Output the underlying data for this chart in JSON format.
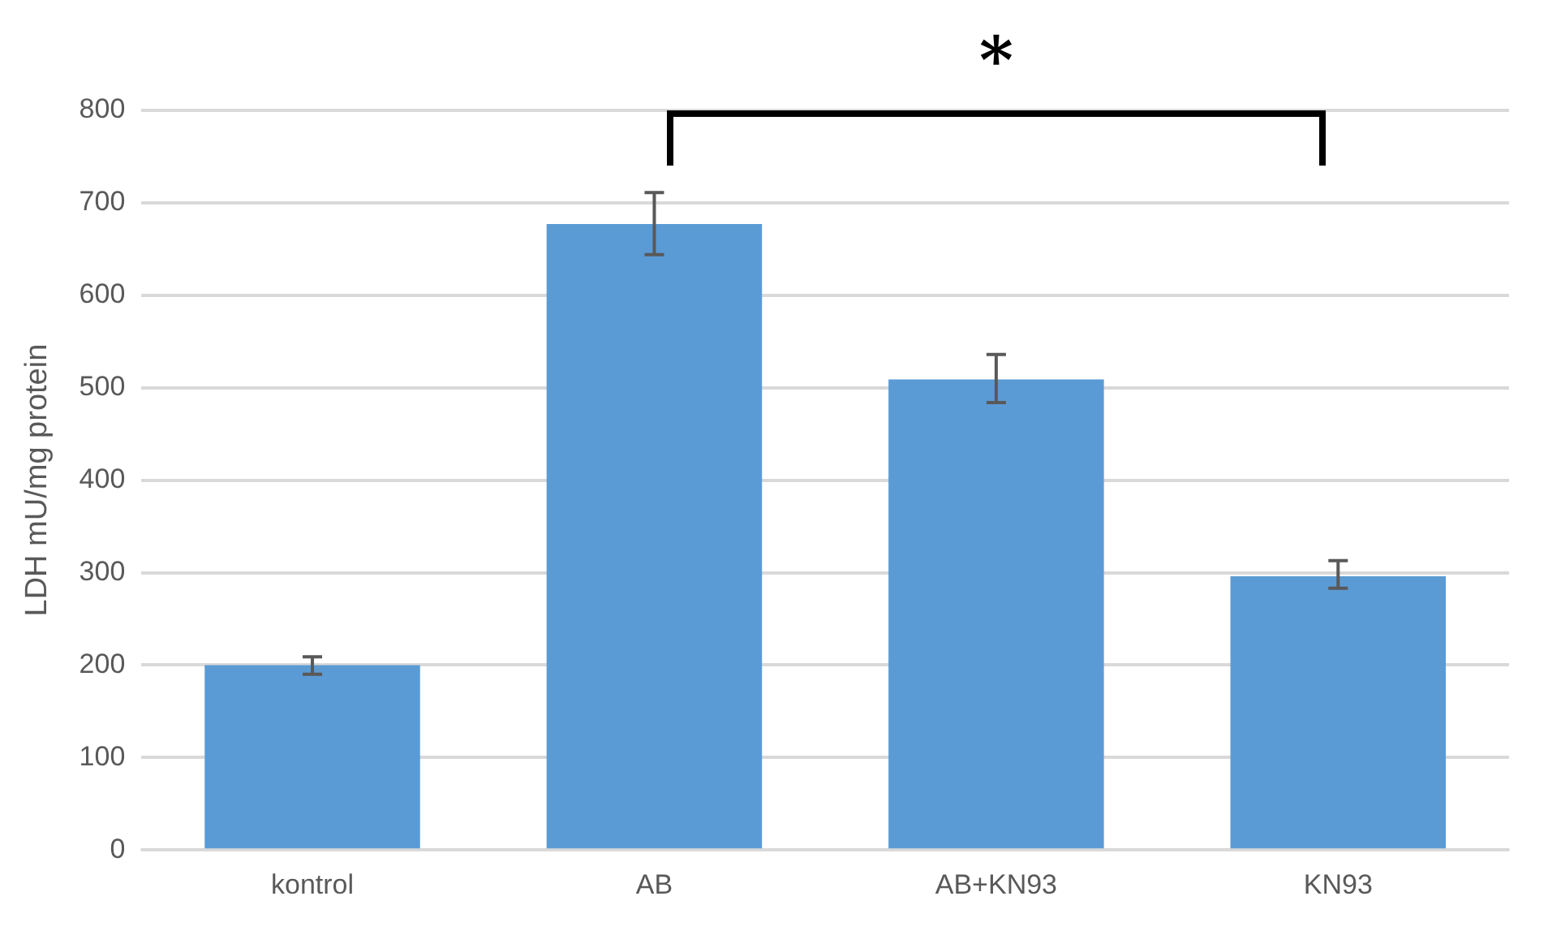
{
  "chart_data": {
    "type": "bar",
    "ylabel": "LDH mU/mg protein",
    "categories": [
      "kontrol",
      "AB",
      "AB+KN93",
      "KN93"
    ],
    "values": [
      200,
      677,
      509,
      296
    ],
    "errors": [
      [
        190,
        209
      ],
      [
        644,
        711
      ],
      [
        484,
        536
      ],
      [
        283,
        313
      ]
    ],
    "color": "#5b9bd5",
    "ylim": [
      0,
      800
    ],
    "yticks": [
      0,
      100,
      200,
      300,
      400,
      500,
      600,
      700,
      800
    ],
    "grid": "y",
    "legend": false,
    "annotations": [
      "*"
    ]
  }
}
